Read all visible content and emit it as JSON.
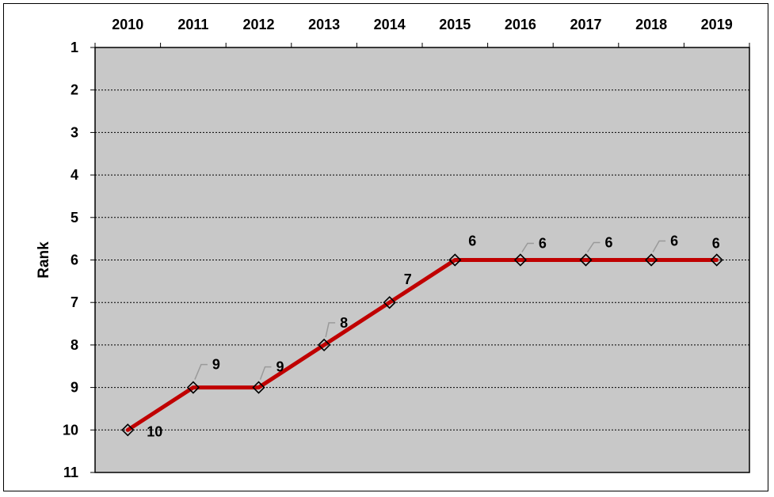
{
  "chart_data": {
    "type": "line",
    "title": "",
    "xlabel": "",
    "ylabel": "Rank",
    "x": [
      "2010",
      "2011",
      "2012",
      "2013",
      "2014",
      "2015",
      "2016",
      "2017",
      "2018",
      "2019"
    ],
    "y_ticks": [
      "1",
      "2",
      "3",
      "4",
      "5",
      "6",
      "7",
      "8",
      "9",
      "10",
      "11"
    ],
    "ylim": [
      1,
      11
    ],
    "y_reversed": true,
    "x_axis_position": "top",
    "series": [
      {
        "values": [
          10,
          9,
          9,
          8,
          7,
          6,
          6,
          6,
          6,
          6
        ],
        "data_labels": [
          "10",
          "9",
          "9",
          "8",
          "7",
          "6",
          "6",
          "6",
          "6",
          "6"
        ],
        "line_color": "#C00000",
        "marker": "diamond"
      }
    ],
    "plot_background": "#C8C8C8",
    "grid": true,
    "grid_style": "dotted horizontal"
  }
}
